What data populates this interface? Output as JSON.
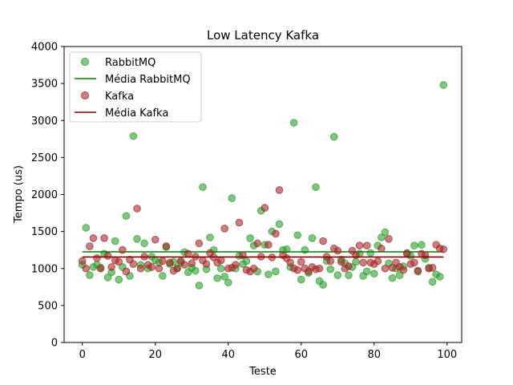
{
  "chart_data": {
    "type": "scatter",
    "title": "Low Latency Kafka",
    "xlabel": "Teste",
    "ylabel": "Tempo (us)",
    "xlim": [
      -5,
      104
    ],
    "ylim": [
      0,
      4000
    ],
    "xticks": [
      0,
      20,
      40,
      60,
      80,
      100
    ],
    "yticks": [
      0,
      500,
      1000,
      1500,
      2000,
      2500,
      3000,
      3500,
      4000
    ],
    "grid": false,
    "legend_position": "top-left",
    "legend": [
      "RabbitMQ",
      "Média RabbitMQ",
      "Kafka",
      "Média Kafka"
    ],
    "series": [
      {
        "name": "RabbitMQ",
        "kind": "points",
        "color": "#2ca02c",
        "x": [
          0,
          1,
          2,
          3,
          4,
          5,
          6,
          7,
          8,
          9,
          10,
          11,
          12,
          13,
          14,
          15,
          16,
          17,
          18,
          19,
          20,
          21,
          22,
          23,
          24,
          25,
          26,
          27,
          28,
          29,
          30,
          31,
          32,
          33,
          34,
          35,
          36,
          37,
          38,
          39,
          40,
          41,
          42,
          43,
          44,
          45,
          46,
          47,
          48,
          49,
          50,
          51,
          52,
          53,
          54,
          55,
          56,
          57,
          58,
          59,
          60,
          61,
          62,
          63,
          64,
          65,
          66,
          67,
          68,
          69,
          70,
          71,
          72,
          73,
          74,
          75,
          76,
          77,
          78,
          79,
          80,
          81,
          82,
          83,
          84,
          85,
          86,
          87,
          88,
          89,
          90,
          91,
          92,
          93,
          94,
          95,
          96,
          97,
          98,
          99
        ],
        "y": [
          1050,
          1550,
          910,
          1020,
          1050,
          1010,
          1200,
          880,
          950,
          1370,
          850,
          1020,
          1710,
          900,
          2790,
          1400,
          1050,
          1340,
          1000,
          1160,
          1110,
          1080,
          900,
          1290,
          1060,
          1090,
          1000,
          1080,
          1220,
          950,
          1010,
          970,
          770,
          2100,
          990,
          1420,
          1250,
          870,
          1000,
          890,
          810,
          1950,
          1000,
          1170,
          1060,
          1100,
          1410,
          1310,
          960,
          1780,
          1320,
          920,
          1500,
          960,
          1600,
          1250,
          1260,
          1020,
          2970,
          1450,
          850,
          1250,
          940,
          1410,
          2100,
          830,
          780,
          1100,
          990,
          2780,
          910,
          1120,
          1070,
          910,
          1020,
          1090,
          1200,
          900,
          960,
          1210,
          930,
          1310,
          1420,
          1490,
          1070,
          870,
          1000,
          910,
          1030,
          1210,
          1170,
          1310,
          960,
          1320,
          1130,
          1010,
          820,
          920,
          890,
          3480
        ]
      },
      {
        "name": "Média RabbitMQ",
        "kind": "line",
        "color": "#008000",
        "x": [
          0,
          99
        ],
        "y": [
          1225,
          1225
        ]
      },
      {
        "name": "Kafka",
        "kind": "points",
        "color": "#a52a2a",
        "x": [
          0,
          1,
          2,
          3,
          4,
          5,
          6,
          7,
          8,
          9,
          10,
          11,
          12,
          13,
          14,
          15,
          16,
          17,
          18,
          19,
          20,
          21,
          22,
          23,
          24,
          25,
          26,
          27,
          28,
          29,
          30,
          31,
          32,
          33,
          34,
          35,
          36,
          37,
          38,
          39,
          40,
          41,
          42,
          43,
          44,
          45,
          46,
          47,
          48,
          49,
          50,
          51,
          52,
          53,
          54,
          55,
          56,
          57,
          58,
          59,
          60,
          61,
          62,
          63,
          64,
          65,
          66,
          67,
          68,
          69,
          70,
          71,
          72,
          73,
          74,
          75,
          76,
          77,
          78,
          79,
          80,
          81,
          82,
          83,
          84,
          85,
          86,
          87,
          88,
          89,
          90,
          91,
          92,
          93,
          94,
          95,
          96,
          97,
          98,
          99
        ],
        "y": [
          1100,
          1000,
          1300,
          1410,
          1140,
          1000,
          1410,
          1170,
          1020,
          1110,
          1090,
          1250,
          960,
          1120,
          1060,
          1810,
          1000,
          1160,
          1050,
          1020,
          1390,
          1000,
          1100,
          1300,
          1080,
          970,
          1000,
          1100,
          1050,
          1200,
          1070,
          1160,
          1340,
          1110,
          1060,
          1210,
          1150,
          1080,
          1110,
          1540,
          1000,
          1010,
          1050,
          1620,
          1180,
          980,
          960,
          1000,
          1340,
          1160,
          1820,
          1320,
          1150,
          1470,
          2060,
          1180,
          1140,
          1080,
          1000,
          980,
          1090,
          1000,
          960,
          1020,
          990,
          1000,
          1370,
          1160,
          1100,
          1270,
          1240,
          1090,
          1000,
          1030,
          1240,
          1180,
          1310,
          1080,
          1310,
          1080,
          1060,
          1100,
          1270,
          1000,
          1400,
          1010,
          1080,
          1020,
          980,
          1200,
          1060,
          1080,
          970,
          1200,
          1180,
          1000,
          1010,
          1320,
          1270,
          1260
        ]
      },
      {
        "name": "Média Kafka",
        "kind": "line",
        "color": "#8b0000",
        "x": [
          0,
          99
        ],
        "y": [
          1155,
          1155
        ]
      }
    ]
  }
}
